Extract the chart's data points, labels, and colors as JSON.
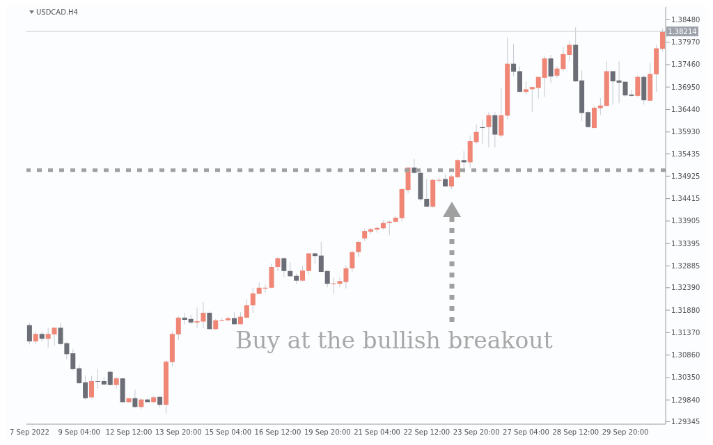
{
  "chart_data": {
    "type": "candlestick",
    "title": "USDCAD.H4",
    "categories": [
      "7 Sep 2022",
      null,
      null,
      null,
      null,
      null,
      null,
      null,
      "9 Sep 04:00",
      null,
      null,
      null,
      null,
      null,
      null,
      null,
      "12 Sep 12:00",
      null,
      null,
      null,
      null,
      null,
      null,
      null,
      "13 Sep 20:00",
      null,
      null,
      null,
      null,
      null,
      null,
      null,
      "15 Sep 04:00",
      null,
      null,
      null,
      null,
      null,
      null,
      null,
      "16 Sep 12:00",
      null,
      null,
      null,
      null,
      null,
      null,
      null,
      "19 Sep 20:00",
      null,
      null,
      null,
      null,
      null,
      null,
      null,
      "21 Sep 04:00",
      null,
      null,
      null,
      null,
      null,
      null,
      null,
      "22 Sep 12:00",
      null,
      null,
      null,
      null,
      null,
      null,
      null,
      "23 Sep 20:00",
      null,
      null,
      null,
      null,
      null,
      null,
      null,
      "27 Sep 04:00",
      null,
      null,
      null,
      null,
      null,
      null,
      null,
      "28 Sep 12:00",
      null,
      null,
      null,
      null,
      null,
      null,
      null,
      "29 Sep 20:00",
      null,
      null,
      null,
      null,
      null,
      null
    ],
    "ohlc": [
      [
        1.3154,
        1.3159,
        1.311,
        1.3117
      ],
      [
        1.3117,
        1.3139,
        1.311,
        1.3134
      ],
      [
        1.3134,
        1.3139,
        1.3116,
        1.3123
      ],
      [
        1.3123,
        1.3148,
        1.3103,
        1.3134
      ],
      [
        1.3133,
        1.315,
        1.3108,
        1.3148
      ],
      [
        1.3148,
        1.3159,
        1.3108,
        1.3111
      ],
      [
        1.3113,
        1.3116,
        1.3076,
        1.3088
      ],
      [
        1.309,
        1.31,
        1.3051,
        1.3054
      ],
      [
        1.3056,
        1.3064,
        1.3021,
        1.3022
      ],
      [
        1.3024,
        1.3039,
        1.2985,
        1.2988
      ],
      [
        1.299,
        1.3039,
        1.2987,
        1.3027
      ],
      [
        1.3027,
        1.3054,
        1.301,
        1.3027
      ],
      [
        1.3027,
        1.3036,
        1.3018,
        1.3019
      ],
      [
        1.3048,
        1.305,
        1.3016,
        1.3018
      ],
      [
        1.3018,
        1.3036,
        1.301,
        1.3033
      ],
      [
        1.3033,
        1.3034,
        1.2978,
        1.2979
      ],
      [
        1.2979,
        1.2988,
        1.2978,
        1.2988
      ],
      [
        1.2988,
        1.3007,
        1.2965,
        1.2968
      ],
      [
        1.2968,
        1.2988,
        1.2964,
        1.2985
      ],
      [
        1.2985,
        1.2987,
        1.2979,
        1.2979
      ],
      [
        1.2979,
        1.2993,
        1.2978,
        1.299
      ],
      [
        1.2991,
        1.2993,
        1.2967,
        1.2973
      ],
      [
        1.2973,
        1.3074,
        1.2953,
        1.3071
      ],
      [
        1.307,
        1.3139,
        1.306,
        1.3134
      ],
      [
        1.3133,
        1.3174,
        1.312,
        1.3171
      ],
      [
        1.3171,
        1.3182,
        1.3156,
        1.3166
      ],
      [
        1.3168,
        1.3177,
        1.3156,
        1.316
      ],
      [
        1.316,
        1.3194,
        1.3147,
        1.3163
      ],
      [
        1.3162,
        1.3206,
        1.3147,
        1.3182
      ],
      [
        1.3182,
        1.3185,
        1.3143,
        1.3145
      ],
      [
        1.3145,
        1.3168,
        1.3143,
        1.3165
      ],
      [
        1.3165,
        1.317,
        1.3163,
        1.3166
      ],
      [
        1.3165,
        1.3174,
        1.3163,
        1.317
      ],
      [
        1.317,
        1.3183,
        1.3156,
        1.3156
      ],
      [
        1.3156,
        1.3183,
        1.3156,
        1.3173
      ],
      [
        1.3171,
        1.3213,
        1.317,
        1.3199
      ],
      [
        1.3199,
        1.3239,
        1.3182,
        1.3226
      ],
      [
        1.3225,
        1.3251,
        1.3225,
        1.3239
      ],
      [
        1.3237,
        1.3246,
        1.3228,
        1.3239
      ],
      [
        1.3239,
        1.3294,
        1.3237,
        1.3286
      ],
      [
        1.3286,
        1.3308,
        1.3277,
        1.3306
      ],
      [
        1.3306,
        1.3308,
        1.3263,
        1.3277
      ],
      [
        1.3277,
        1.3297,
        1.3263,
        1.3265
      ],
      [
        1.3266,
        1.3271,
        1.3248,
        1.3255
      ],
      [
        1.3255,
        1.3289,
        1.3254,
        1.3278
      ],
      [
        1.3277,
        1.3317,
        1.3269,
        1.3317
      ],
      [
        1.3317,
        1.332,
        1.3294,
        1.3311
      ],
      [
        1.3312,
        1.3343,
        1.3274,
        1.3275
      ],
      [
        1.3277,
        1.3278,
        1.324,
        1.3248
      ],
      [
        1.3248,
        1.3262,
        1.3225,
        1.3249
      ],
      [
        1.3248,
        1.3262,
        1.324,
        1.3254
      ],
      [
        1.3252,
        1.3289,
        1.3237,
        1.3283
      ],
      [
        1.3283,
        1.3323,
        1.3274,
        1.332
      ],
      [
        1.332,
        1.3346,
        1.3309,
        1.3343
      ],
      [
        1.3351,
        1.3372,
        1.3346,
        1.3368
      ],
      [
        1.3366,
        1.3375,
        1.3361,
        1.3372
      ],
      [
        1.3371,
        1.3378,
        1.3364,
        1.3375
      ],
      [
        1.3374,
        1.3392,
        1.3371,
        1.3386
      ],
      [
        1.3386,
        1.3392,
        1.3358,
        1.3389
      ],
      [
        1.3389,
        1.3403,
        1.3386,
        1.3398
      ],
      [
        1.3397,
        1.3466,
        1.3389,
        1.3463
      ],
      [
        1.3461,
        1.3513,
        1.3454,
        1.3512
      ],
      [
        1.3512,
        1.3532,
        1.3498,
        1.35
      ],
      [
        1.35,
        1.3504,
        1.3435,
        1.344
      ],
      [
        1.3441,
        1.3486,
        1.3423,
        1.3423
      ],
      [
        1.3423,
        1.3486,
        1.3421,
        1.3484
      ],
      [
        1.3483,
        1.3489,
        1.3478,
        1.3484
      ],
      [
        1.3486,
        1.3496,
        1.3469,
        1.3469
      ],
      [
        1.3469,
        1.3496,
        1.3463,
        1.3492
      ],
      [
        1.349,
        1.3532,
        1.3486,
        1.3529
      ],
      [
        1.3529,
        1.355,
        1.35,
        1.3524
      ],
      [
        1.3524,
        1.3585,
        1.3512,
        1.3572
      ],
      [
        1.357,
        1.361,
        1.3566,
        1.3593
      ],
      [
        1.3604,
        1.3622,
        1.3566,
        1.3602
      ],
      [
        1.3604,
        1.3638,
        1.3558,
        1.3631
      ],
      [
        1.3631,
        1.3638,
        1.3558,
        1.3587
      ],
      [
        1.3585,
        1.3693,
        1.3581,
        1.3631
      ],
      [
        1.363,
        1.3807,
        1.3622,
        1.3748
      ],
      [
        1.3748,
        1.3793,
        1.3719,
        1.373
      ],
      [
        1.3731,
        1.3742,
        1.3684,
        1.3684
      ],
      [
        1.3684,
        1.3708,
        1.3678,
        1.369
      ],
      [
        1.369,
        1.3695,
        1.3638,
        1.3695
      ],
      [
        1.3693,
        1.3718,
        1.3668,
        1.3718
      ],
      [
        1.3716,
        1.3765,
        1.3673,
        1.376
      ],
      [
        1.376,
        1.3768,
        1.3704,
        1.3719
      ],
      [
        1.3721,
        1.3742,
        1.3716,
        1.3737
      ],
      [
        1.3736,
        1.3787,
        1.3731,
        1.377
      ],
      [
        1.3768,
        1.3799,
        1.3754,
        1.3791
      ],
      [
        1.3791,
        1.3831,
        1.3707,
        1.3708
      ],
      [
        1.371,
        1.3733,
        1.3618,
        1.3636
      ],
      [
        1.3638,
        1.3641,
        1.3601,
        1.3604
      ],
      [
        1.3602,
        1.3652,
        1.3601,
        1.3648
      ],
      [
        1.3647,
        1.367,
        1.3631,
        1.3653
      ],
      [
        1.3652,
        1.3754,
        1.3652,
        1.3731
      ],
      [
        1.3731,
        1.3731,
        1.3655,
        1.3708
      ],
      [
        1.371,
        1.3753,
        1.3658,
        1.3705
      ],
      [
        1.3707,
        1.3707,
        1.3673,
        1.3676
      ],
      [
        1.3678,
        1.3688,
        1.3673,
        1.3675
      ],
      [
        1.3675,
        1.3722,
        1.3673,
        1.3718
      ],
      [
        1.3718,
        1.3722,
        1.3655,
        1.3665
      ],
      [
        1.3664,
        1.375,
        1.3664,
        1.3725
      ],
      [
        1.3724,
        1.3791,
        1.3684,
        1.3783
      ],
      [
        1.3782,
        1.3828,
        1.3776,
        1.3821
      ]
    ],
    "colors": [
      "#6b6e76",
      "#ef8676",
      "#6b6e76",
      "#ef8676",
      "#ef8676",
      "#6b6e76",
      "#6b6e76",
      "#6b6e76",
      "#6b6e76",
      "#6b6e76",
      "#ef8676",
      "#6b6e76",
      "#6b6e76",
      "#6b6e76",
      "#ef8676",
      "#6b6e76",
      "#ef8676",
      "#6b6e76",
      "#ef8676",
      "#6b6e76",
      "#ef8676",
      "#6b6e76",
      "#ef8676",
      "#ef8676",
      "#ef8676",
      "#6b6e76",
      "#6b6e76",
      "#ef8676",
      "#ef8676",
      "#6b6e76",
      "#ef8676",
      "#ef8676",
      "#ef8676",
      "#6b6e76",
      "#ef8676",
      "#ef8676",
      "#ef8676",
      "#ef8676",
      "#ef8676",
      "#ef8676",
      "#ef8676",
      "#6b6e76",
      "#6b6e76",
      "#6b6e76",
      "#ef8676",
      "#ef8676",
      "#6b6e76",
      "#6b6e76",
      "#6b6e76",
      "#ef8676",
      "#ef8676",
      "#ef8676",
      "#ef8676",
      "#ef8676",
      "#ef8676",
      "#ef8676",
      "#ef8676",
      "#ef8676",
      "#ef8676",
      "#ef8676",
      "#ef8676",
      "#ef8676",
      "#6b6e76",
      "#6b6e76",
      "#6b6e76",
      "#ef8676",
      "#ef8676",
      "#6b6e76",
      "#ef8676",
      "#ef8676",
      "#6b6e76",
      "#ef8676",
      "#ef8676",
      "#6b6e76",
      "#ef8676",
      "#6b6e76",
      "#ef8676",
      "#ef8676",
      "#6b6e76",
      "#6b6e76",
      "#ef8676",
      "#ef8676",
      "#ef8676",
      "#ef8676",
      "#6b6e76",
      "#ef8676",
      "#ef8676",
      "#ef8676",
      "#6b6e76",
      "#6b6e76",
      "#6b6e76",
      "#ef8676",
      "#ef8676",
      "#ef8676",
      "#6b6e76",
      "#6b6e76",
      "#6b6e76",
      "#6b6e76",
      "#ef8676",
      "#6b6e76",
      "#ef8676",
      "#ef8676",
      "#ef8676"
    ],
    "ylim": [
      1.2929,
      1.3877
    ],
    "yticks": [
      {
        "value": 1.3848,
        "label": "1.38480"
      },
      {
        "value": 1.3797,
        "label": "1.37970"
      },
      {
        "value": 1.3746,
        "label": "1.37460"
      },
      {
        "value": 1.3695,
        "label": "1.36950"
      },
      {
        "value": 1.3644,
        "label": "1.36440"
      },
      {
        "value": 1.3593,
        "label": "1.35930"
      },
      1.35435,
      1.34925,
      1.34415,
      1.33905,
      1.33395,
      1.32885,
      {
        "value": 1.3239,
        "label": "1.32390"
      },
      {
        "value": 1.3188,
        "label": "1.31880"
      },
      {
        "value": 1.3137,
        "label": "1.31370"
      },
      {
        "value": 1.3086,
        "label": "1.30860"
      },
      {
        "value": 1.3035,
        "label": "1.30350"
      },
      {
        "value": 1.2984,
        "label": "1.29840"
      },
      1.29345
    ],
    "ref_lines": [
      {
        "axis": "y",
        "value": 1.38214,
        "label": "1.38214",
        "color": "#d0d4dc"
      },
      {
        "axis": "y",
        "value": 1.3506,
        "color": "#a0a0a0",
        "line_style": "dotted"
      }
    ],
    "annotations": [
      "Buy at the bullish breakout"
    ]
  }
}
